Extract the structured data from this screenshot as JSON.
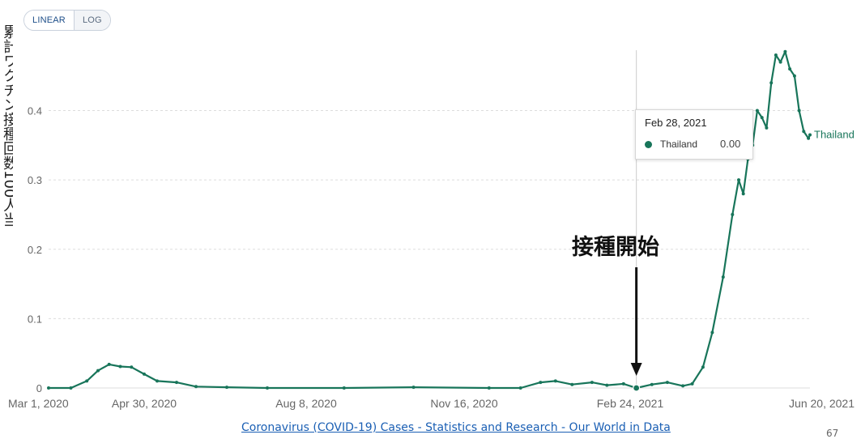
{
  "toolbar": {
    "linear_label": "LINEAR",
    "log_label": "LOG",
    "active": "linear"
  },
  "y_axis_side_label": "累計ワクチン接種回数100人当",
  "source_link": "Coronavirus (COVID-19) Cases - Statistics and Research - Our World in Data",
  "page_number": "67",
  "tooltip": {
    "date": "Feb 28, 2021",
    "series": "Thailand",
    "value": "0.00"
  },
  "annotation": {
    "text": "接種開始"
  },
  "colors": {
    "series": "#18755a",
    "grid": "#dddddd",
    "axis_text": "#666666",
    "link": "#1a5fb4"
  },
  "chart_data": {
    "type": "line",
    "title": "",
    "xlabel": "",
    "ylabel": "",
    "x_ticks": [
      "Mar 1, 2020",
      "Apr 30, 2020",
      "Aug 8, 2020",
      "Nov 16, 2020",
      "Feb 24, 2021",
      "Jun 20, 2021"
    ],
    "y_ticks": [
      "0",
      "0.1",
      "0.2",
      "0.3",
      "0.4"
    ],
    "ylim": [
      0,
      0.48
    ],
    "grid": true,
    "series": [
      {
        "name": "Thailand",
        "color": "#18755a",
        "points": [
          [
            "2020-03-01",
            0.0
          ],
          [
            "2020-03-15",
            0.0
          ],
          [
            "2020-03-25",
            0.01
          ],
          [
            "2020-04-01",
            0.025
          ],
          [
            "2020-04-08",
            0.034
          ],
          [
            "2020-04-15",
            0.031
          ],
          [
            "2020-04-22",
            0.03
          ],
          [
            "2020-04-30",
            0.02
          ],
          [
            "2020-05-08",
            0.01
          ],
          [
            "2020-05-20",
            0.008
          ],
          [
            "2020-06-01",
            0.002
          ],
          [
            "2020-06-20",
            0.001
          ],
          [
            "2020-07-15",
            0.0
          ],
          [
            "2020-09-01",
            0.0
          ],
          [
            "2020-10-15",
            0.001
          ],
          [
            "2020-12-01",
            0.0
          ],
          [
            "2020-12-20",
            0.0
          ],
          [
            "2021-01-01",
            0.008
          ],
          [
            "2021-01-10",
            0.01
          ],
          [
            "2021-01-20",
            0.005
          ],
          [
            "2021-02-01",
            0.008
          ],
          [
            "2021-02-10",
            0.004
          ],
          [
            "2021-02-20",
            0.006
          ],
          [
            "2021-02-28",
            0.0
          ],
          [
            "2021-03-10",
            0.005
          ],
          [
            "2021-03-20",
            0.008
          ],
          [
            "2021-03-30",
            0.003
          ],
          [
            "2021-04-05",
            0.006
          ],
          [
            "2021-04-12",
            0.03
          ],
          [
            "2021-04-18",
            0.08
          ],
          [
            "2021-04-25",
            0.16
          ],
          [
            "2021-05-01",
            0.25
          ],
          [
            "2021-05-05",
            0.3
          ],
          [
            "2021-05-08",
            0.28
          ],
          [
            "2021-05-11",
            0.33
          ],
          [
            "2021-05-14",
            0.35
          ],
          [
            "2021-05-17",
            0.4
          ],
          [
            "2021-05-20",
            0.39
          ],
          [
            "2021-05-23",
            0.375
          ],
          [
            "2021-05-26",
            0.44
          ],
          [
            "2021-05-29",
            0.48
          ],
          [
            "2021-06-01",
            0.47
          ],
          [
            "2021-06-04",
            0.485
          ],
          [
            "2021-06-07",
            0.46
          ],
          [
            "2021-06-10",
            0.45
          ],
          [
            "2021-06-13",
            0.4
          ],
          [
            "2021-06-16",
            0.37
          ],
          [
            "2021-06-19",
            0.36
          ],
          [
            "2021-06-20",
            0.365
          ]
        ]
      }
    ],
    "annotations": [
      {
        "text": "接種開始",
        "date": "2021-02-28"
      }
    ]
  }
}
